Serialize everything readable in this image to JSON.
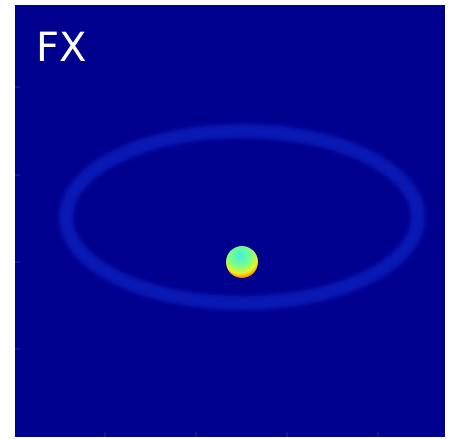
{
  "panel": {
    "label": "FX"
  }
}
